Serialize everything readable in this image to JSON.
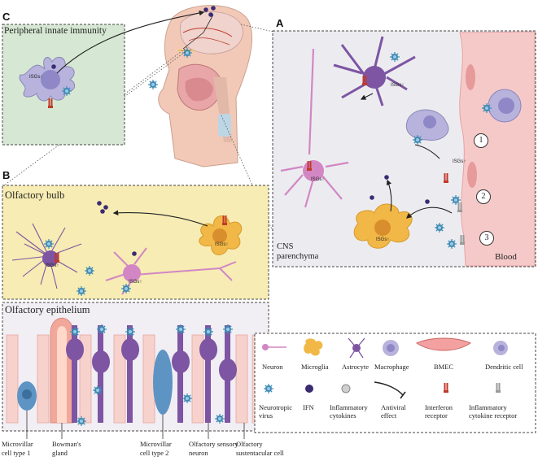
{
  "panels": {
    "a": {
      "letter": "A",
      "cns_label": "CNS\nparenchyma",
      "blood_label": "Blood",
      "steps": [
        "1",
        "2",
        "3"
      ]
    },
    "b": {
      "letter": "B",
      "bulb_title": "Olfactory bulb",
      "epithelium_title": "Olfactory epithelium"
    },
    "c": {
      "letter": "C",
      "title": "Peripheral innate immunity"
    }
  },
  "isg_label": "ISGs↑",
  "epithelium_captions": [
    "Microvillar\ncell type 1",
    "Bowman's\ngland",
    "Microvillar\ncell type 2",
    "Olfactory sensory\nneuron",
    "Olfactory\nsustentacular cell"
  ],
  "legend": {
    "row1": [
      "Neuron",
      "Microglia",
      "Astrocyte",
      "Macrophage",
      "BMEC",
      "Dendritic cell"
    ],
    "row2": [
      "Neurotropic\nvirus",
      "IFN",
      "Inflammatory\ncytokines",
      "Antiviral\neffect",
      "Interferon\nreceptor",
      "Inflammatory\ncytokine receptor"
    ]
  },
  "colors": {
    "panel_a_bg": "#ececf0",
    "blood": "#f6c9c9",
    "panel_b_bulb": "#f7ecb3",
    "panel_b_epi": "#f1eef4",
    "panel_c_bg": "#d6e8d3",
    "virus": "#3f8ab4",
    "neuron": "#d287c4",
    "microglia": "#7d55a3",
    "astrocyte": "#f2b847",
    "macrophage": "#b7b3dc",
    "ifn": "#3b2b72"
  }
}
